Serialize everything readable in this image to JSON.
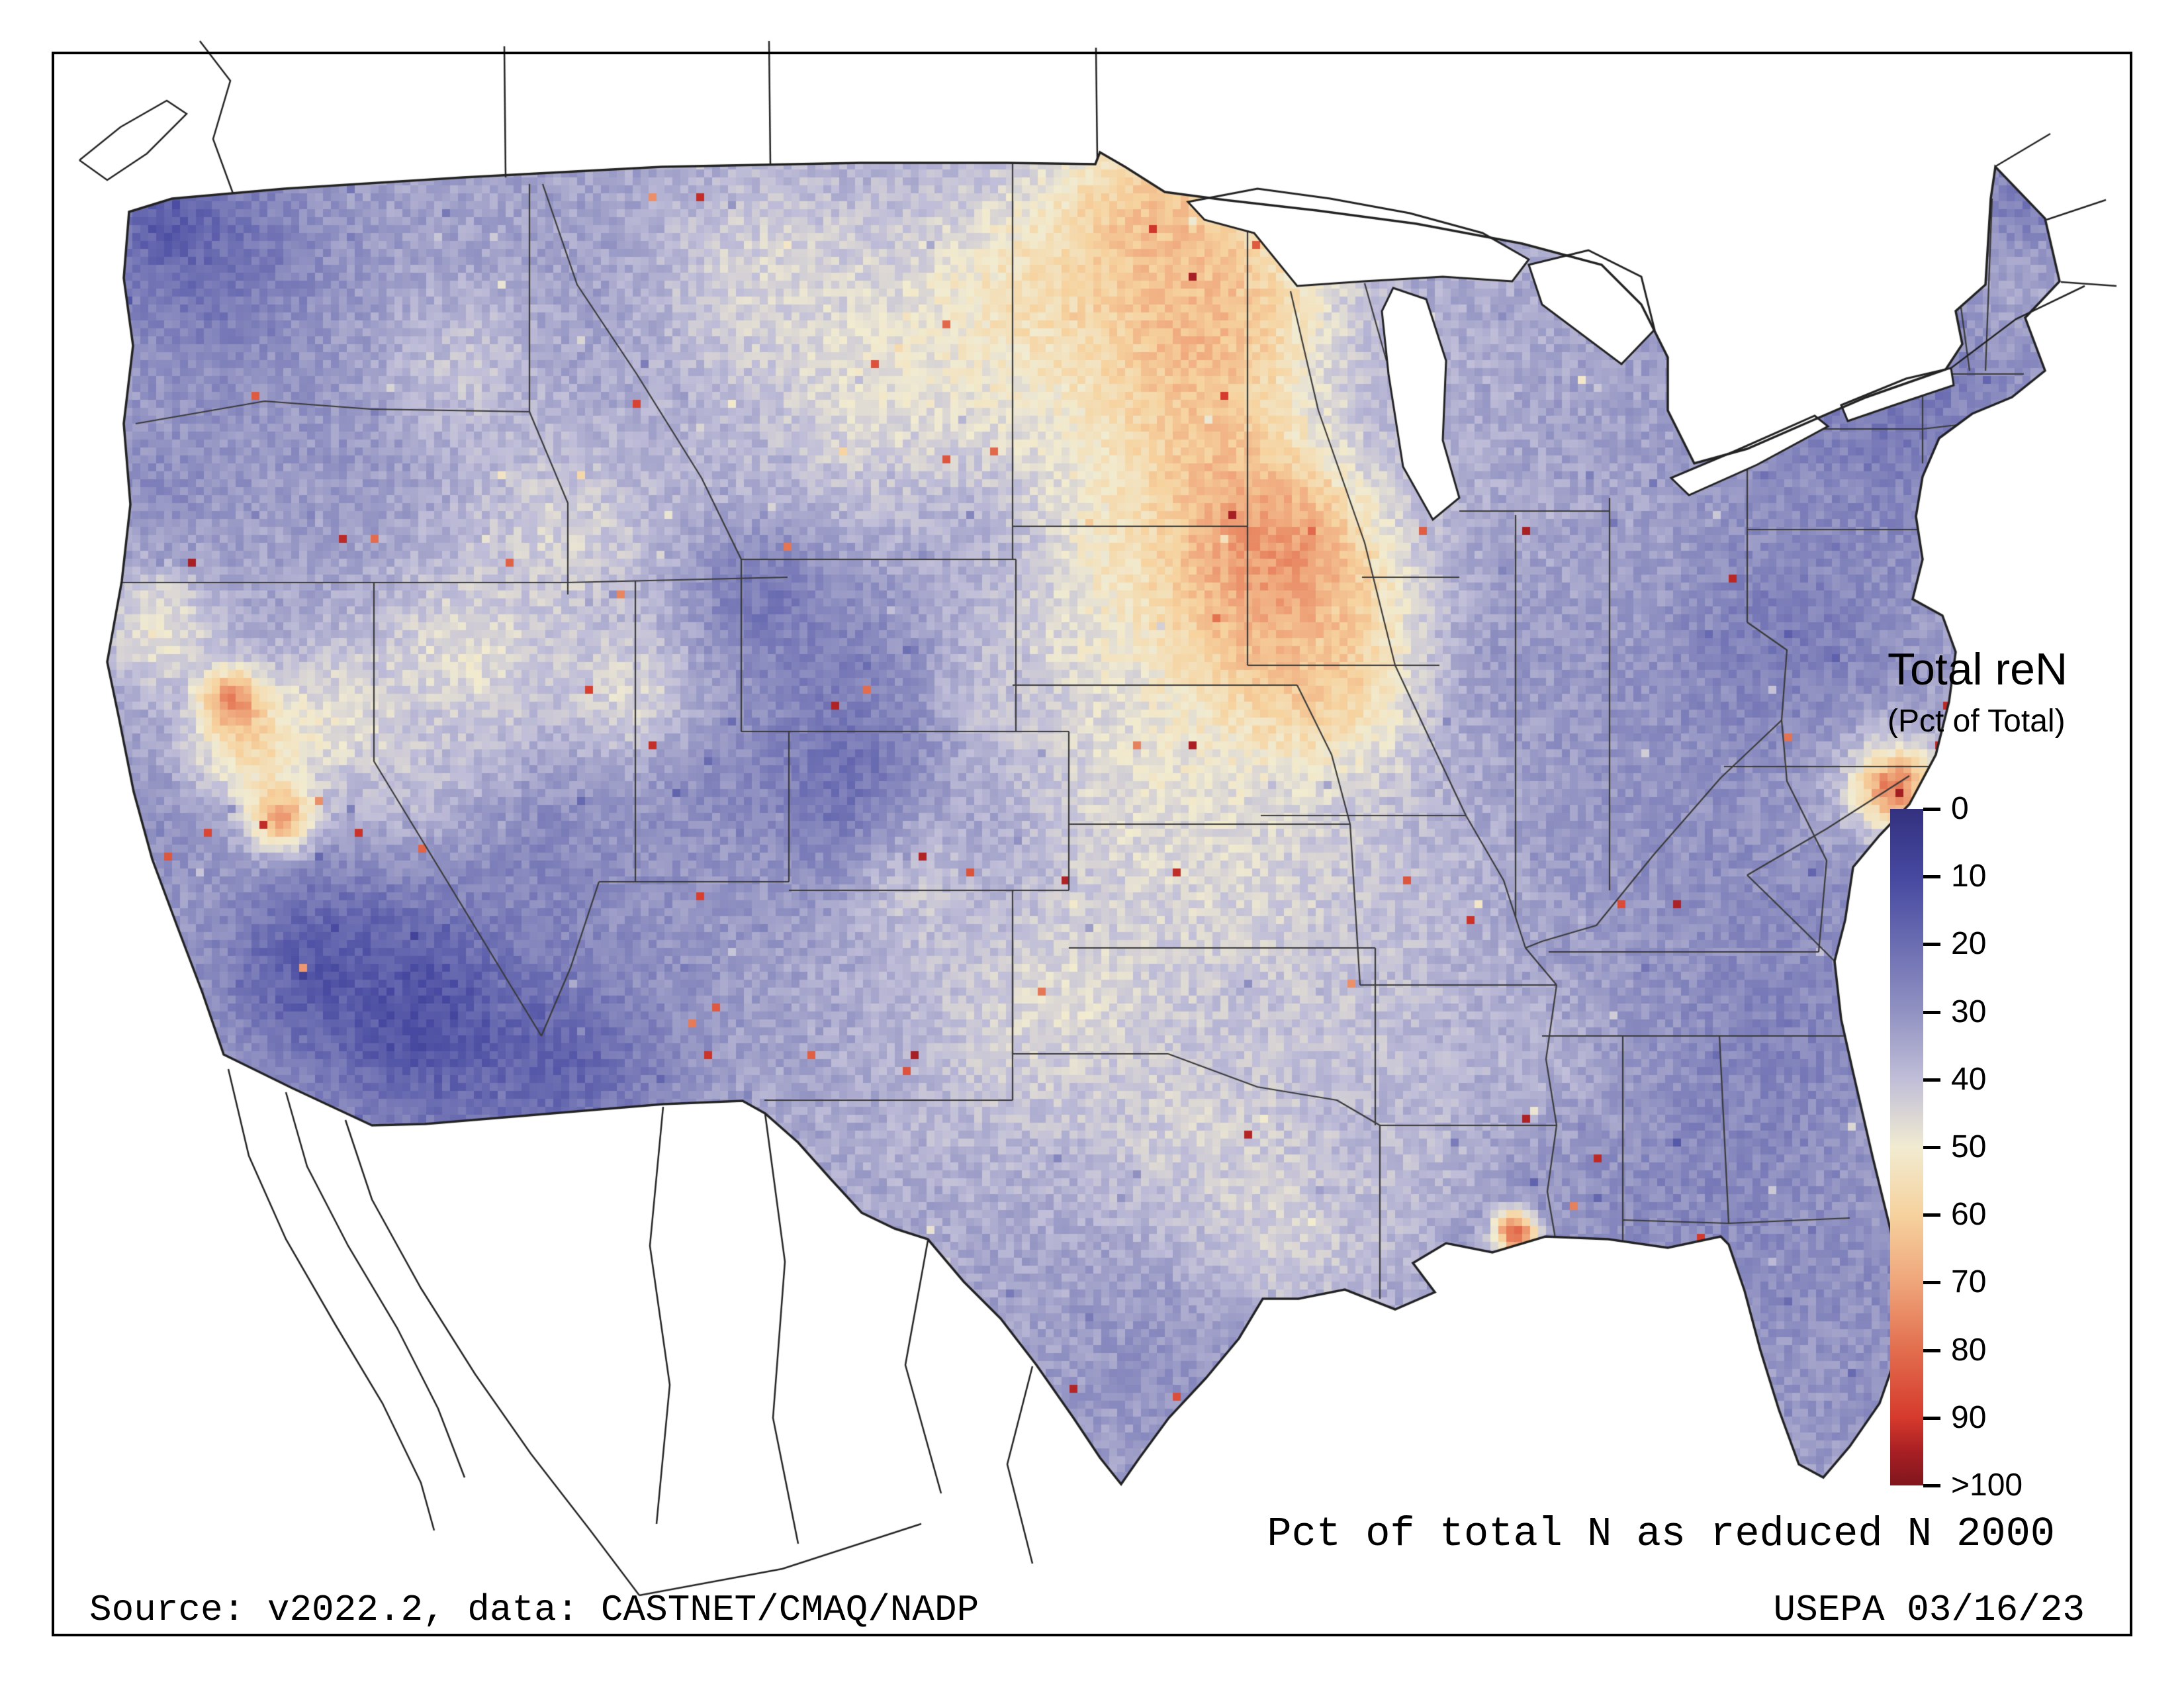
{
  "legend": {
    "title": "Total reN",
    "subtitle": "(Pct of Total)",
    "ticks": [
      "0",
      "10",
      "20",
      "30",
      "40",
      "50",
      "60",
      "70",
      "80",
      "90",
      ">100"
    ],
    "colors": [
      "#33317f",
      "#4648a0",
      "#6b6db2",
      "#9192c2",
      "#c0bed8",
      "#f1ebd1",
      "#f6d29e",
      "#efa57a",
      "#e26e4e",
      "#d63a2c",
      "#a81f24",
      "#7f161c"
    ]
  },
  "caption": "Pct of total N as reduced N 2000",
  "footer": {
    "source": "Source: v2022.2, data: CASTNET/CMAQ/NADP",
    "agency_date": "USEPA 03/16/23"
  },
  "chart_data": {
    "type": "heatmap",
    "title": "Total reN (Pct of Total)",
    "caption": "Pct of total N as reduced N 2000",
    "units": "percent of total N deposition as reduced N",
    "scale": {
      "values": [
        0,
        10,
        20,
        30,
        40,
        50,
        60,
        70,
        80,
        90,
        100,
        110
      ],
      "colors": [
        "#33317f",
        "#4648a0",
        "#6b6db2",
        "#9192c2",
        "#c0bed8",
        "#f1ebd1",
        "#f6d29e",
        "#efa57a",
        "#e26e4e",
        "#d63a2c",
        "#a81f24",
        "#7f161c"
      ],
      "last_label": ">100",
      "orientation": "vertical, 0 at top, >100 at bottom"
    },
    "regions": [
      {
        "region": "Eastern North Dakota / western Minnesota",
        "approx_value": 75
      },
      {
        "region": "NE South Dakota / southern Minnesota / northern Iowa",
        "approx_value": 70
      },
      {
        "region": "California Central Valley",
        "approx_value": 70
      },
      {
        "region": "Eastern North Carolina hotspot",
        "approx_value": 80
      },
      {
        "region": "Southern Louisiana hotspot",
        "approx_value": 90
      },
      {
        "region": "Great Plains (MT, NE, KS, TX panhandle)",
        "approx_value": 48
      },
      {
        "region": "Southwest deserts (S. AZ, SE CA)",
        "approx_value": 10
      },
      {
        "region": "Southeast (GA, AL, FL)",
        "approx_value": 25
      },
      {
        "region": "Northeast (NY, New England)",
        "approx_value": 22
      },
      {
        "region": "Pacific Northwest (WA)",
        "approx_value": 18
      },
      {
        "region": "Midwest (IL, IN, OH)",
        "approx_value": 32
      },
      {
        "region": "Colorado Rockies",
        "approx_value": 18
      }
    ],
    "field": {
      "base": 34,
      "blobs": [
        [
          1800,
          500,
          300,
          72
        ],
        [
          1750,
          330,
          190,
          66
        ],
        [
          1860,
          780,
          250,
          76
        ],
        [
          1930,
          830,
          160,
          74
        ],
        [
          1950,
          950,
          200,
          68
        ],
        [
          2000,
          1020,
          190,
          62
        ],
        [
          1560,
          480,
          240,
          58
        ],
        [
          1700,
          820,
          210,
          55
        ],
        [
          1450,
          650,
          220,
          50
        ],
        [
          320,
          400,
          240,
          20
        ],
        [
          255,
          330,
          100,
          13
        ],
        [
          540,
          640,
          200,
          30
        ],
        [
          250,
          730,
          150,
          28
        ],
        [
          240,
          950,
          110,
          52
        ],
        [
          900,
          480,
          280,
          32
        ],
        [
          1150,
          420,
          210,
          46
        ],
        [
          1300,
          560,
          260,
          48
        ],
        [
          700,
          560,
          160,
          42
        ],
        [
          860,
          800,
          190,
          46
        ],
        [
          1600,
          1000,
          230,
          48
        ],
        [
          1750,
          1200,
          260,
          50
        ],
        [
          1900,
          1360,
          240,
          46
        ],
        [
          2100,
          700,
          240,
          40
        ],
        [
          2230,
          520,
          200,
          36
        ],
        [
          2250,
          900,
          230,
          35
        ],
        [
          1450,
          820,
          200,
          36
        ],
        [
          1270,
          1000,
          190,
          26
        ],
        [
          1150,
          900,
          130,
          22
        ],
        [
          1300,
          1195,
          180,
          18
        ],
        [
          1460,
          1260,
          160,
          35
        ],
        [
          1050,
          1150,
          200,
          28
        ],
        [
          950,
          1050,
          130,
          48
        ],
        [
          700,
          1000,
          175,
          50
        ],
        [
          620,
          1160,
          150,
          40
        ],
        [
          820,
          1310,
          180,
          26
        ],
        [
          380,
          1120,
          115,
          62
        ],
        [
          350,
          1060,
          58,
          80
        ],
        [
          425,
          1235,
          62,
          76
        ],
        [
          250,
          1260,
          130,
          28
        ],
        [
          520,
          1080,
          130,
          48
        ],
        [
          480,
          1460,
          190,
          13
        ],
        [
          650,
          1530,
          230,
          8
        ],
        [
          860,
          1580,
          210,
          14
        ],
        [
          1010,
          1410,
          210,
          30
        ],
        [
          1210,
          1560,
          230,
          35
        ],
        [
          1460,
          1610,
          250,
          40
        ],
        [
          1610,
          1500,
          210,
          48
        ],
        [
          1810,
          1710,
          230,
          45
        ],
        [
          1960,
          1850,
          180,
          46
        ],
        [
          1760,
          2060,
          210,
          30
        ],
        [
          1910,
          2160,
          150,
          28
        ],
        [
          2060,
          1560,
          230,
          42
        ],
        [
          2210,
          1310,
          250,
          40
        ],
        [
          2360,
          1160,
          250,
          33
        ],
        [
          2300,
          990,
          160,
          31
        ],
        [
          2510,
          1110,
          230,
          30
        ],
        [
          2660,
          1010,
          210,
          28
        ],
        [
          2700,
          960,
          160,
          24
        ],
        [
          2560,
          1310,
          250,
          28
        ],
        [
          2460,
          1460,
          230,
          32
        ],
        [
          2410,
          1660,
          230,
          30
        ],
        [
          2310,
          1610,
          160,
          38
        ],
        [
          2560,
          1760,
          250,
          24
        ],
        [
          2710,
          1560,
          230,
          25
        ],
        [
          2780,
          1390,
          210,
          28
        ],
        [
          2862,
          1190,
          115,
          56
        ],
        [
          2862,
          1190,
          56,
          82
        ],
        [
          2760,
          960,
          220,
          29
        ],
        [
          2840,
          710,
          190,
          26
        ],
        [
          2700,
          710,
          190,
          28
        ],
        [
          2880,
          560,
          170,
          19
        ],
        [
          3000,
          500,
          150,
          26
        ],
        [
          3045,
          430,
          130,
          36
        ],
        [
          3060,
          300,
          100,
          22
        ],
        [
          2290,
          1862,
          42,
          92
        ],
        [
          2260,
          1830,
          160,
          29
        ],
        [
          2810,
          1960,
          210,
          28
        ],
        [
          2790,
          2120,
          130,
          30
        ],
        [
          2620,
          1890,
          160,
          28
        ],
        [
          1390,
          1360,
          130,
          42
        ],
        [
          2150,
          1710,
          160,
          38
        ],
        [
          2360,
          600,
          210,
          33
        ],
        [
          2250,
          420,
          160,
          35
        ],
        [
          1520,
          1060,
          110,
          40
        ],
        [
          2100,
          1800,
          150,
          40
        ],
        [
          1080,
          700,
          160,
          38
        ]
      ]
    }
  }
}
